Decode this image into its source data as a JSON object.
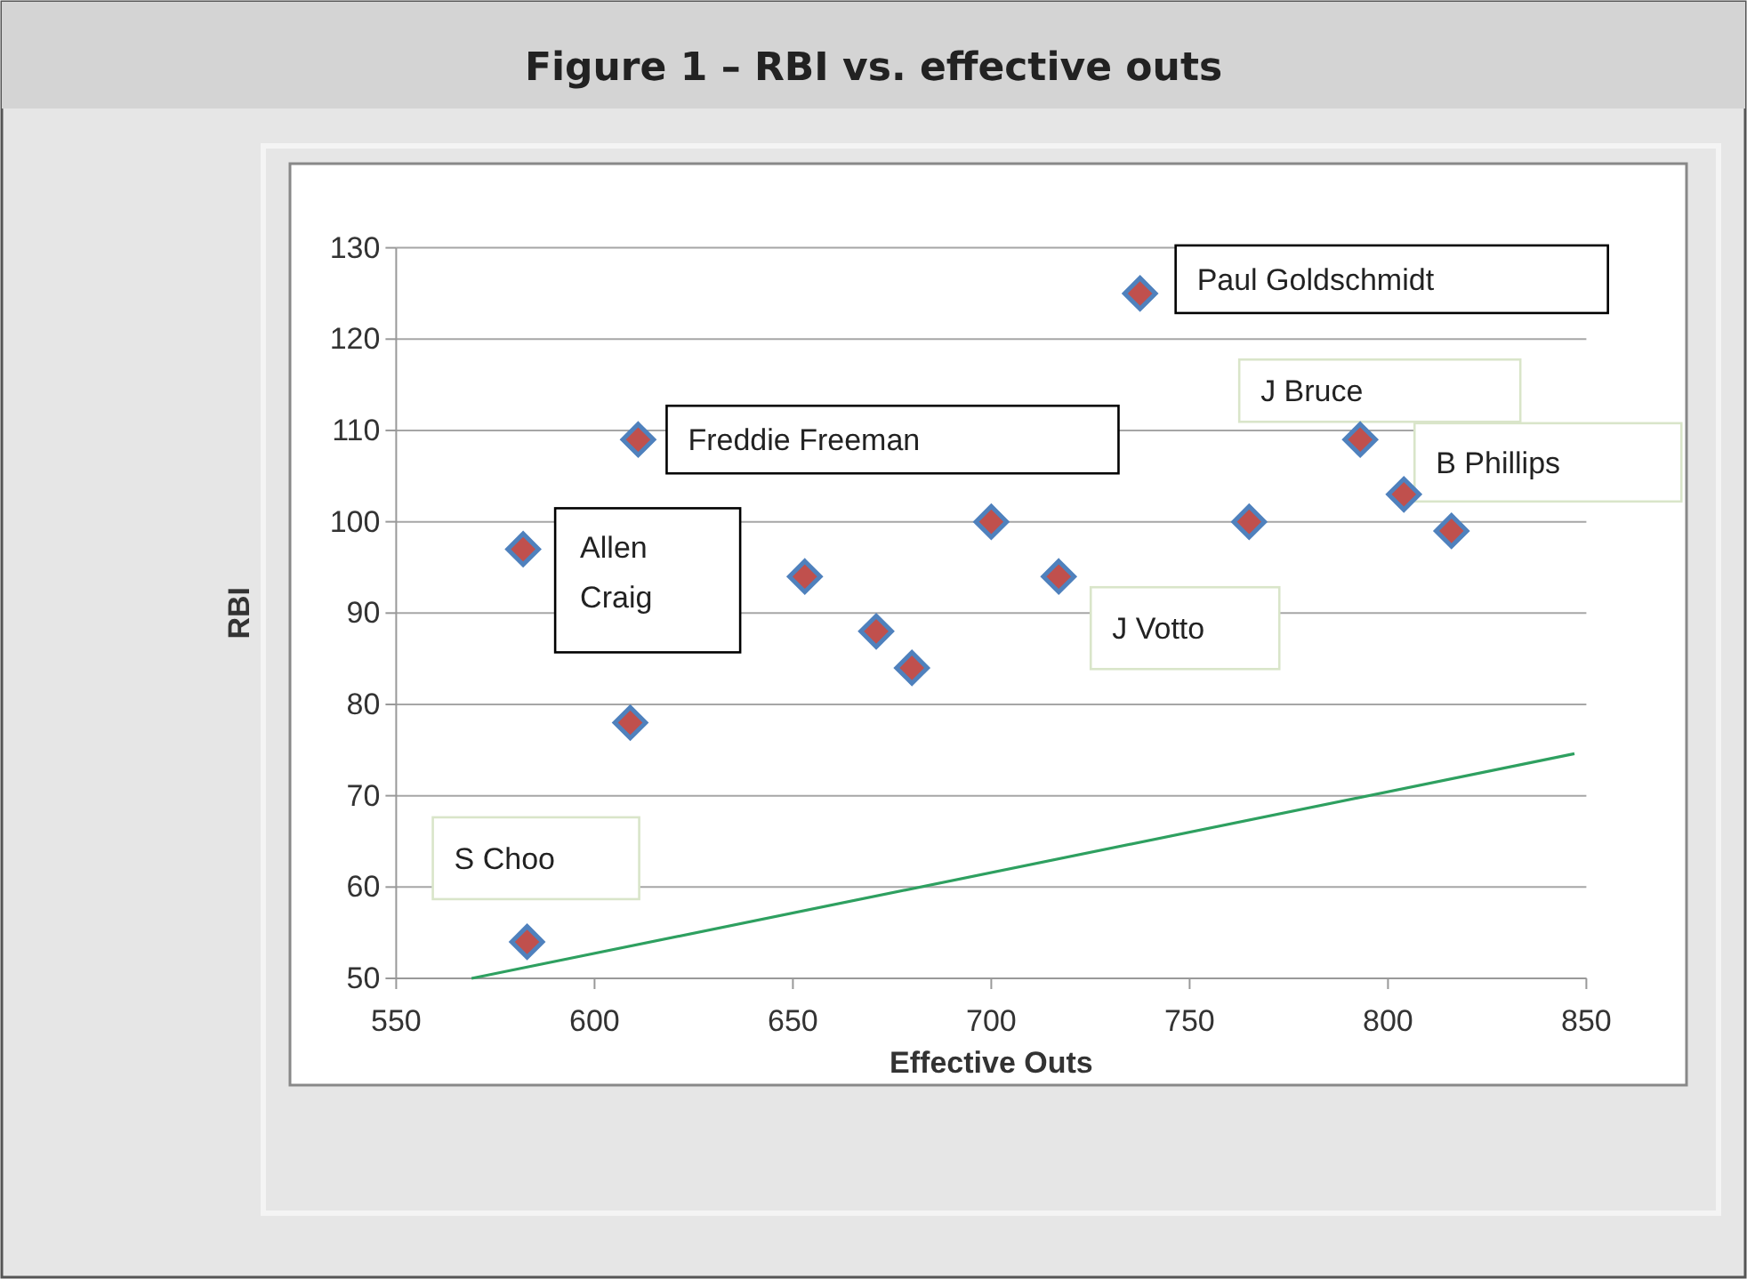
{
  "chart_data": {
    "type": "scatter",
    "title": "Figure 1 – RBI vs. effective outs",
    "xlabel": "Effective Outs",
    "ylabel": "RBI",
    "xlim": [
      550,
      850
    ],
    "xticks": [
      550,
      600,
      650,
      700,
      750,
      800,
      850
    ],
    "ylim": [
      50,
      130
    ],
    "yticks": [
      50,
      60,
      70,
      80,
      90,
      100,
      110,
      120,
      130
    ],
    "grid": "y",
    "series": [
      {
        "marker": "diamond",
        "color": "#c0504d",
        "x": [
          582,
          611,
          609,
          583,
          653,
          671,
          680,
          700,
          717,
          737.5,
          765,
          793,
          804,
          816
        ],
        "values": [
          97,
          109,
          78,
          54,
          94,
          88,
          84,
          100,
          94,
          125,
          100,
          109,
          103,
          99
        ]
      },
      {
        "type": "line",
        "color": "#2ea060",
        "x": [
          569,
          847
        ],
        "values": [
          50,
          74.6
        ]
      }
    ],
    "annotations": [
      {
        "text": "Paul Goldschmidt",
        "x": 737.5,
        "y": 125
      },
      {
        "text": "Freddie Freeman",
        "x": 611,
        "y": 109
      },
      {
        "text": "Allen Craig",
        "x": 582,
        "y": 97
      },
      {
        "text": "S Choo",
        "x": 583,
        "y": 54
      },
      {
        "text": "J Votto",
        "x": 717,
        "y": 94
      },
      {
        "text": "J Bruce",
        "x": 793,
        "y": 109
      },
      {
        "text": "B Phillips",
        "x": 804,
        "y": 103
      }
    ]
  }
}
